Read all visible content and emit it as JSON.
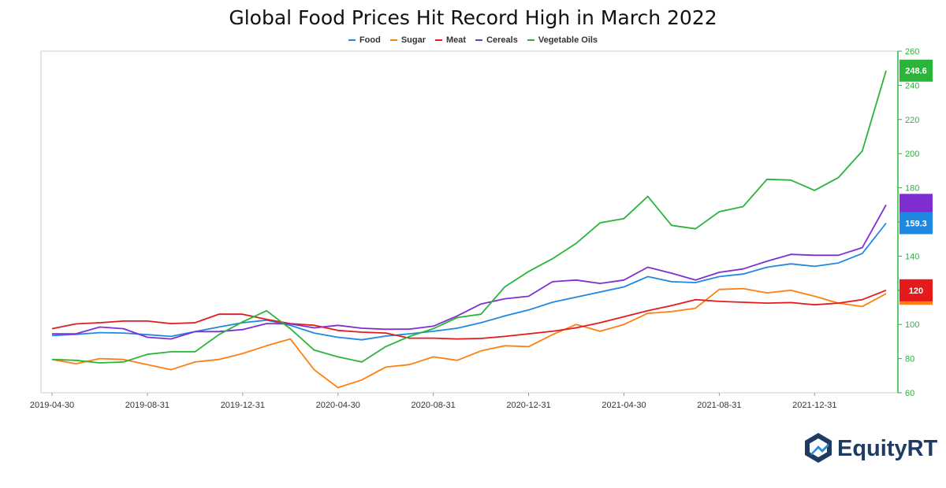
{
  "chart_data": {
    "type": "line",
    "title": "Global Food Prices Hit Record High in March 2022",
    "x": [
      "2019-04-30",
      "2019-05-31",
      "2019-06-30",
      "2019-07-31",
      "2019-08-31",
      "2019-09-30",
      "2019-10-31",
      "2019-11-30",
      "2019-12-31",
      "2020-01-31",
      "2020-02-29",
      "2020-03-31",
      "2020-04-30",
      "2020-05-31",
      "2020-06-30",
      "2020-07-31",
      "2020-08-31",
      "2020-09-30",
      "2020-10-31",
      "2020-11-30",
      "2020-12-31",
      "2021-01-31",
      "2021-02-28",
      "2021-03-31",
      "2021-04-30",
      "2021-05-31",
      "2021-06-30",
      "2021-07-31",
      "2021-08-31",
      "2021-09-30",
      "2021-10-31",
      "2021-11-30",
      "2021-12-31",
      "2022-01-31",
      "2022-02-28",
      "2022-03-31"
    ],
    "x_tick_labels": [
      "2019-04-30",
      "2019-08-31",
      "2019-12-31",
      "2020-04-30",
      "2020-08-31",
      "2020-12-31",
      "2021-04-30",
      "2021-08-31",
      "2021-12-31"
    ],
    "ylim": [
      60,
      260
    ],
    "y_ticks": [
      60,
      80,
      100,
      120,
      140,
      160,
      180,
      200,
      220,
      240,
      260
    ],
    "y_axis_position": "right",
    "grid": false,
    "legend_position": "top-center",
    "series": [
      {
        "name": "Food",
        "color": "#1f88e0",
        "values": [
          93.5,
          94.2,
          95.2,
          95,
          94,
          93,
          95.8,
          98.5,
          101,
          102.5,
          99.5,
          95,
          92.5,
          91,
          93.2,
          94.5,
          96,
          97.8,
          101,
          105,
          108.5,
          113,
          116,
          119,
          122,
          128,
          125,
          124.5,
          128,
          129.5,
          133.5,
          135.5,
          134,
          136,
          141.5,
          159.3
        ]
      },
      {
        "name": "Sugar",
        "color": "#ff7f0e",
        "values": [
          79.5,
          77,
          80,
          79.5,
          76.5,
          73.5,
          78,
          79.5,
          83,
          87.5,
          91.5,
          73.5,
          63,
          67.5,
          75,
          76.5,
          81,
          79,
          84.5,
          87.5,
          87,
          94,
          100,
          96,
          100,
          106.5,
          107.5,
          109.5,
          120.5,
          121,
          118.5,
          120,
          116.5,
          112.5,
          110.5,
          118
        ]
      },
      {
        "name": "Meat",
        "color": "#e41a1c",
        "values": [
          97.5,
          100.3,
          101,
          102,
          102,
          100.5,
          101,
          106,
          106,
          103,
          100.5,
          99.5,
          96.5,
          95.5,
          95,
          92,
          92,
          91.5,
          91.8,
          93,
          94.5,
          96,
          98,
          101,
          104.5,
          108,
          111,
          114.5,
          113.5,
          113,
          112.5,
          112.8,
          111.5,
          112.5,
          114.5,
          120
        ]
      },
      {
        "name": "Cereals",
        "color": "#7f2fd1",
        "values": [
          94.5,
          94.5,
          98.5,
          97.5,
          92.5,
          91.5,
          95.8,
          95.8,
          97,
          100.5,
          100.3,
          98,
          99.5,
          97.8,
          97.2,
          97.3,
          99,
          105,
          112,
          115,
          116.5,
          125,
          126,
          124,
          126,
          133.5,
          130,
          126,
          130.5,
          132.5,
          137,
          141,
          140.5,
          140.5,
          145,
          170
        ]
      },
      {
        "name": "Vegetable Oils",
        "color": "#2ab53a",
        "values": [
          79.5,
          79,
          77.5,
          78,
          82.5,
          84,
          84,
          94,
          101.5,
          108,
          97.5,
          85,
          81,
          78,
          87,
          93,
          97.5,
          104,
          106,
          122,
          131,
          138.5,
          147.5,
          159.5,
          162,
          175,
          158,
          156,
          166,
          169,
          185,
          184.5,
          178.5,
          186,
          201.5,
          248.6
        ]
      }
    ],
    "value_labels": [
      {
        "series": "Vegetable Oils",
        "text": "248.6"
      },
      {
        "series": "Food",
        "text": "159.3"
      },
      {
        "series": "Meat",
        "text": "120"
      }
    ],
    "marker_tags": [
      {
        "series": "Cereals",
        "value": 170
      },
      {
        "series": "Sugar",
        "value": 118
      }
    ]
  },
  "brand": {
    "name": "EquityRT",
    "icon": "equityrt-logo-icon",
    "color": "#1f3a63"
  }
}
